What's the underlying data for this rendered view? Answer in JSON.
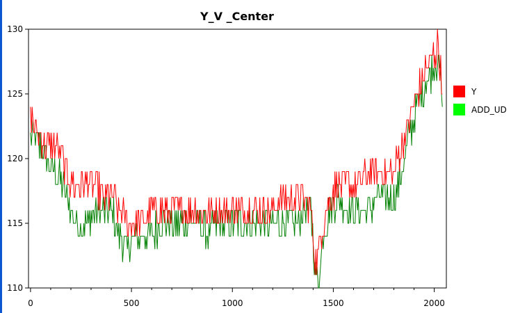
{
  "chart_data": {
    "type": "line",
    "title": "Y_V _Center",
    "xlabel": "",
    "ylabel": "",
    "xlim": [
      -10,
      2060
    ],
    "ylim": [
      110,
      130
    ],
    "xticks": [
      0,
      500,
      1000,
      1500,
      2000
    ],
    "yticks": [
      110,
      115,
      120,
      125,
      130
    ],
    "grid": false,
    "legend_position": "right",
    "series": [
      {
        "name": "Y",
        "color": "#ff0000",
        "x": [
          0,
          40,
          80,
          120,
          160,
          200,
          240,
          280,
          320,
          360,
          400,
          440,
          480,
          520,
          560,
          600,
          640,
          680,
          720,
          760,
          800,
          840,
          880,
          920,
          960,
          1000,
          1040,
          1080,
          1120,
          1160,
          1200,
          1240,
          1280,
          1320,
          1360,
          1390,
          1410,
          1430,
          1450,
          1480,
          1520,
          1560,
          1600,
          1640,
          1680,
          1720,
          1760,
          1800,
          1840,
          1880,
          1920,
          1960,
          2000,
          2020,
          2040
        ],
        "y": [
          123,
          122,
          121,
          121,
          120,
          118,
          118,
          118,
          118,
          117,
          117,
          116,
          115,
          115,
          115,
          116,
          116,
          116,
          116,
          116,
          116,
          116,
          116,
          116,
          116,
          116,
          116,
          116,
          116,
          116,
          116,
          117,
          117,
          117,
          117,
          116,
          112,
          113,
          115,
          117,
          118,
          118,
          118,
          118,
          119,
          119,
          119,
          119,
          121,
          123,
          125,
          127,
          128,
          129,
          125
        ]
      },
      {
        "name": "ADD_UD",
        "color": "#008000",
        "x": [
          0,
          40,
          80,
          120,
          160,
          200,
          240,
          280,
          320,
          360,
          400,
          440,
          480,
          520,
          560,
          600,
          640,
          680,
          720,
          760,
          800,
          840,
          880,
          920,
          960,
          1000,
          1040,
          1080,
          1120,
          1160,
          1200,
          1240,
          1280,
          1320,
          1360,
          1390,
          1410,
          1430,
          1450,
          1480,
          1520,
          1560,
          1600,
          1640,
          1680,
          1720,
          1760,
          1800,
          1840,
          1880,
          1920,
          1960,
          2000,
          2020,
          2040
        ],
        "y": [
          122,
          121,
          120,
          119,
          118,
          116,
          115,
          115,
          116,
          116,
          116,
          114,
          113,
          114,
          114,
          114,
          115,
          115,
          115,
          115,
          115,
          115,
          114,
          115,
          115,
          115,
          115,
          115,
          115,
          115,
          115,
          115,
          115,
          115,
          116,
          116,
          111,
          111,
          114,
          116,
          117,
          116,
          116,
          116,
          116,
          117,
          117,
          117,
          119,
          122,
          124,
          126,
          127,
          128,
          124
        ]
      }
    ]
  }
}
